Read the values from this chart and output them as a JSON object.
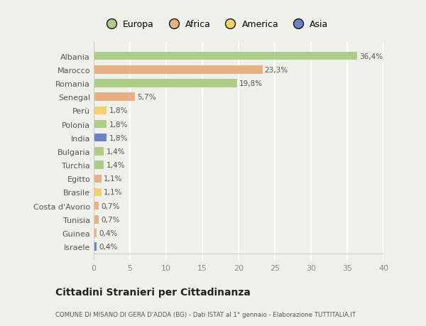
{
  "countries": [
    "Albania",
    "Marocco",
    "Romania",
    "Senegal",
    "Perù",
    "Polonia",
    "India",
    "Bulgaria",
    "Turchia",
    "Egitto",
    "Brasile",
    "Costa d'Avorio",
    "Tunisia",
    "Guinea",
    "Israele"
  ],
  "values": [
    36.4,
    23.3,
    19.8,
    5.7,
    1.8,
    1.8,
    1.8,
    1.4,
    1.4,
    1.1,
    1.1,
    0.7,
    0.7,
    0.4,
    0.4
  ],
  "labels": [
    "36,4%",
    "23,3%",
    "19,8%",
    "5,7%",
    "1,8%",
    "1,8%",
    "1,8%",
    "1,4%",
    "1,4%",
    "1,1%",
    "1,1%",
    "0,7%",
    "0,7%",
    "0,4%",
    "0,4%"
  ],
  "continents": [
    "Europa",
    "Africa",
    "Europa",
    "Africa",
    "America",
    "Europa",
    "Asia",
    "Europa",
    "Europa",
    "Africa",
    "America",
    "Africa",
    "Africa",
    "Africa",
    "Asia"
  ],
  "continent_colors": {
    "Europa": "#a8c87e",
    "Africa": "#e8aa78",
    "America": "#f0d060",
    "Asia": "#5878c0"
  },
  "background_color": "#f0f0eb",
  "plot_bg_color": "#f0f0eb",
  "title": "Cittadini Stranieri per Cittadinanza",
  "subtitle": "COMUNE DI MISANO DI GERA D'ADDA (BG) - Dati ISTAT al 1° gennaio - Elaborazione TUTTITALIA.IT",
  "xlim": [
    0,
    40
  ],
  "xticks": [
    0,
    5,
    10,
    15,
    20,
    25,
    30,
    35,
    40
  ],
  "legend_order": [
    "Europa",
    "Africa",
    "America",
    "Asia"
  ]
}
